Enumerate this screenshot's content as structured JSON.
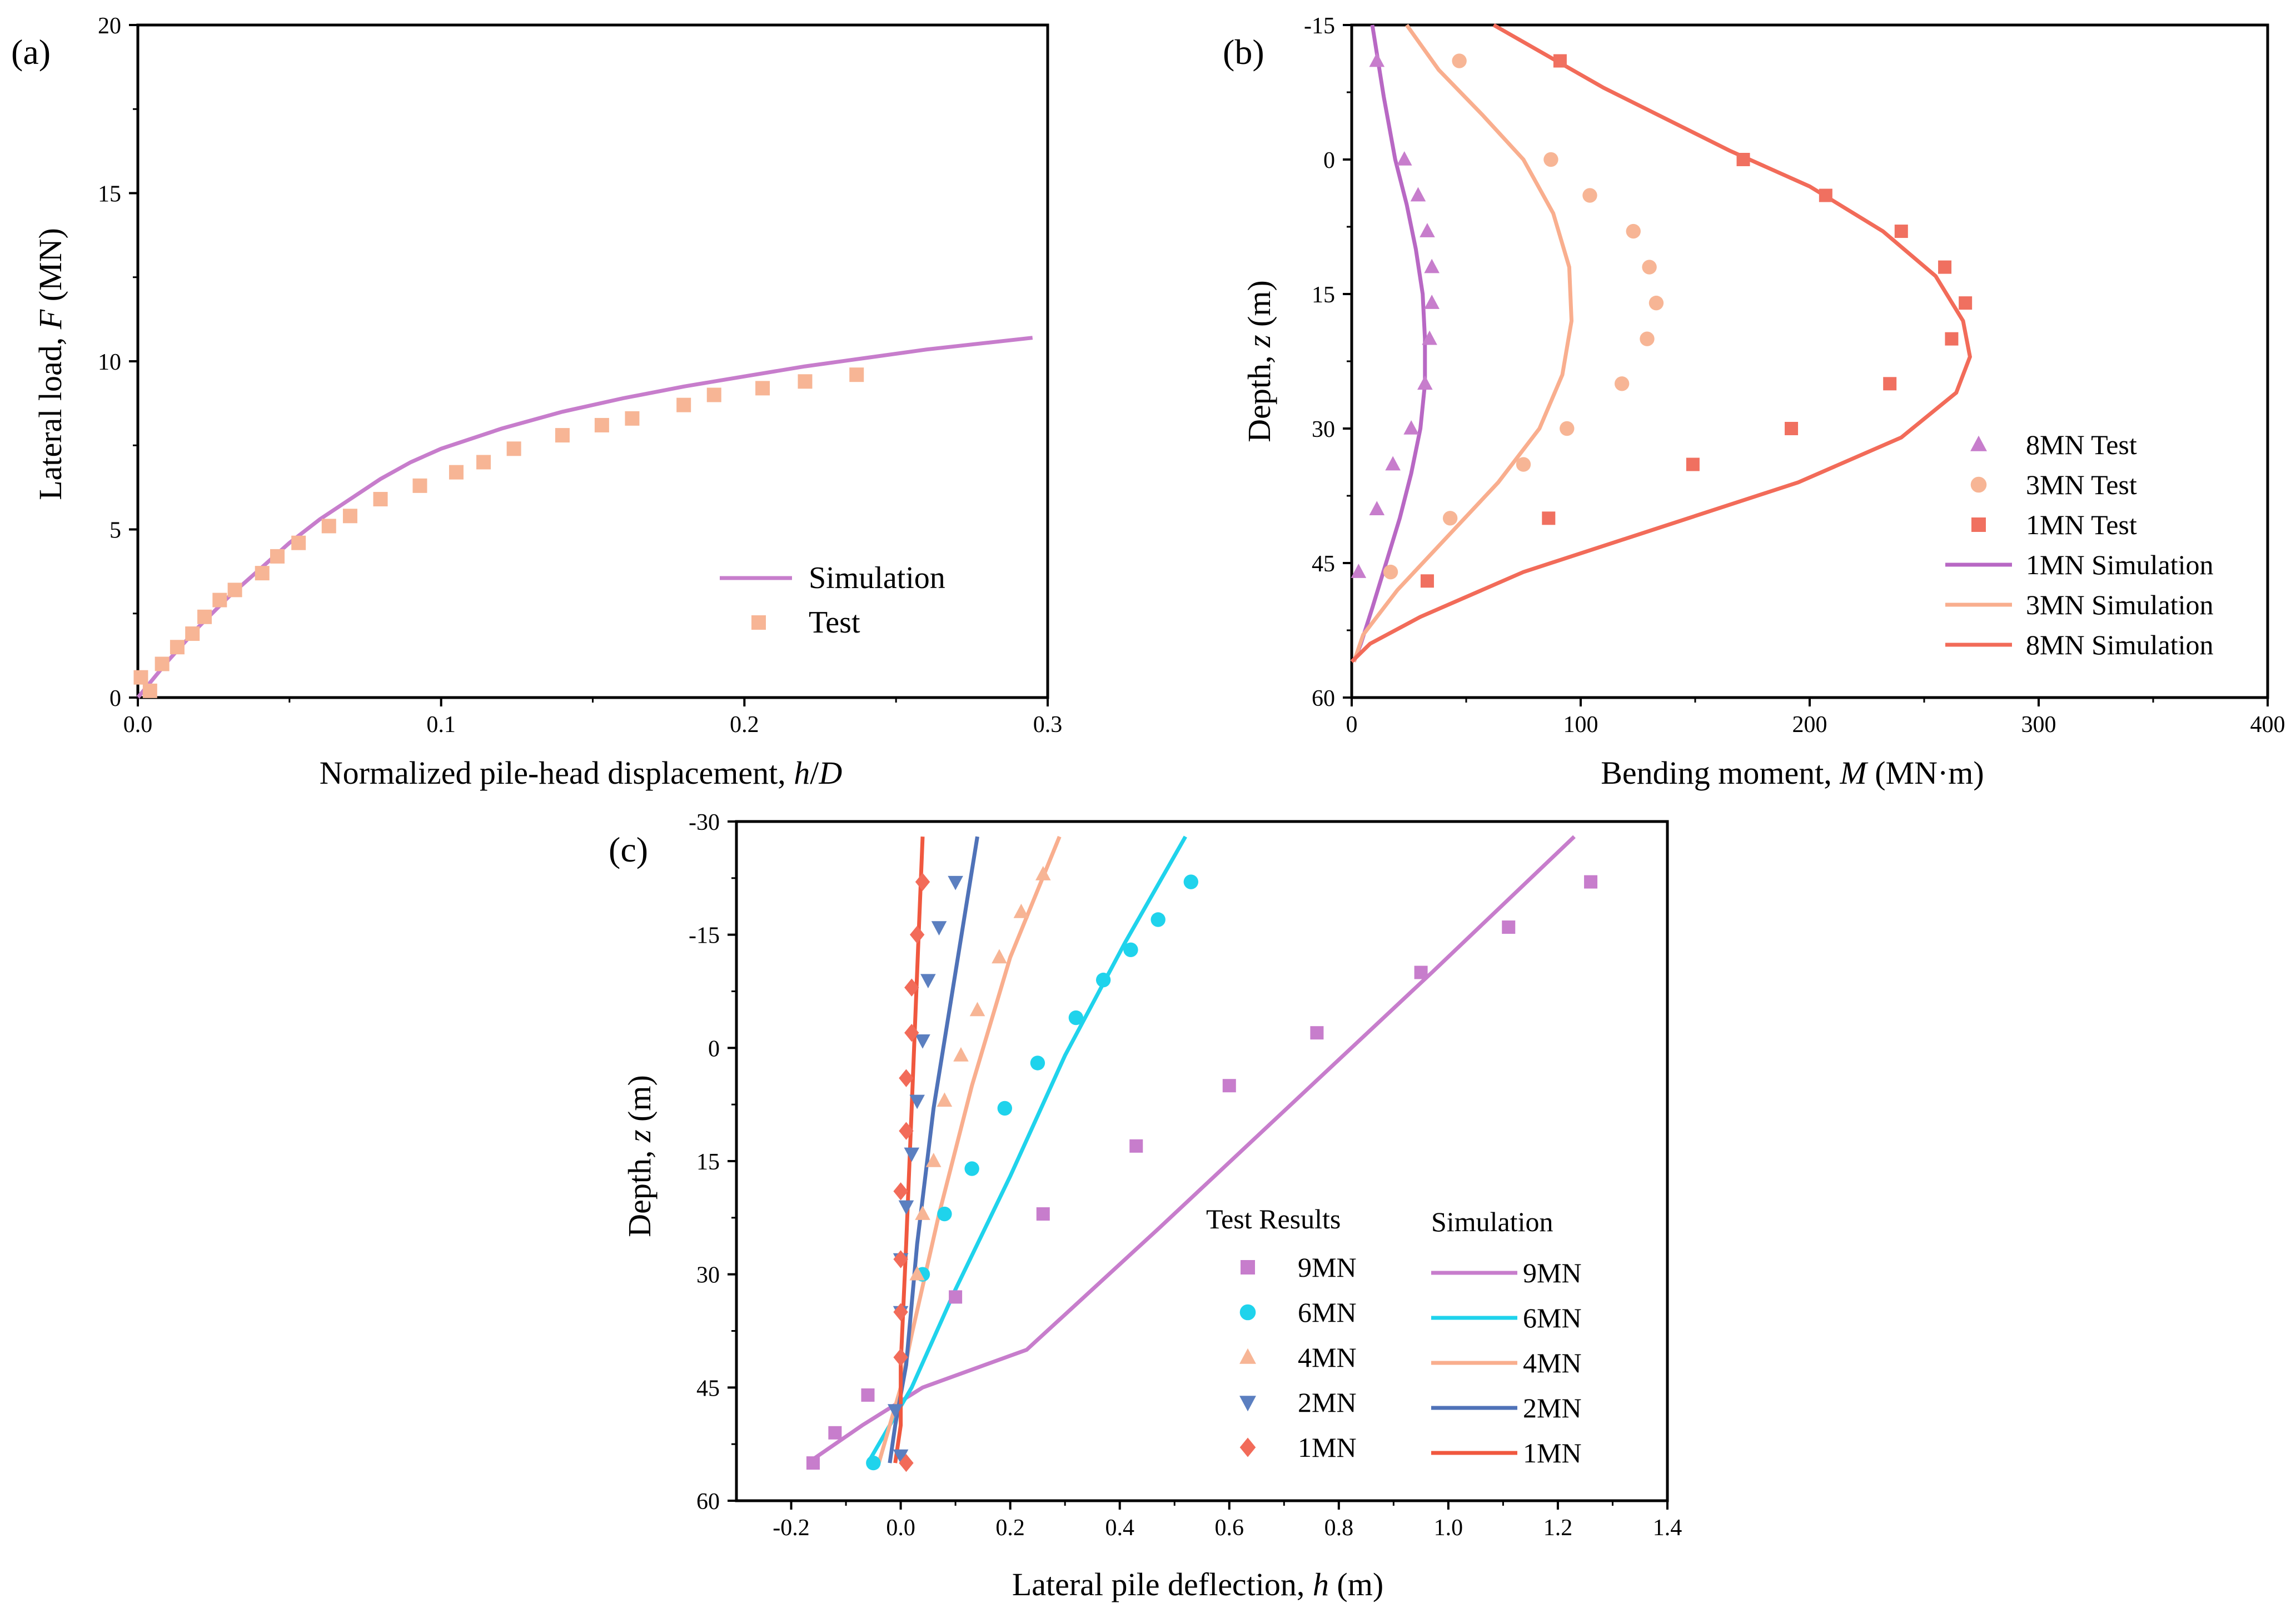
{
  "chart_data": [
    {
      "panel": "(a)",
      "type": "line+scatter",
      "xlabel": "Normalized pile-head displacement, h/D",
      "ylabel": "Lateral load, F (MN)",
      "xlim": [
        0,
        0.3
      ],
      "ylim": [
        0,
        20
      ],
      "xticks": [
        "0.0",
        "0.1",
        "0.2",
        "0.3"
      ],
      "yticks": [
        "0",
        "5",
        "10",
        "15",
        "20"
      ],
      "series": [
        {
          "name": "Simulation",
          "kind": "line",
          "color": "#c77dcc",
          "x": [
            0,
            0.01,
            0.02,
            0.03,
            0.04,
            0.05,
            0.06,
            0.07,
            0.08,
            0.09,
            0.1,
            0.12,
            0.14,
            0.16,
            0.18,
            0.2,
            0.22,
            0.24,
            0.26,
            0.28,
            0.295
          ],
          "y": [
            0,
            1.1,
            2.1,
            3.0,
            3.8,
            4.6,
            5.3,
            5.9,
            6.5,
            7.0,
            7.4,
            8.0,
            8.5,
            8.9,
            9.25,
            9.55,
            9.85,
            10.1,
            10.35,
            10.55,
            10.7
          ]
        },
        {
          "name": "Test",
          "kind": "square",
          "color": "#f7b595",
          "x": [
            0.001,
            0.004,
            0.008,
            0.013,
            0.018,
            0.022,
            0.027,
            0.032,
            0.041,
            0.046,
            0.053,
            0.063,
            0.07,
            0.08,
            0.093,
            0.105,
            0.114,
            0.124,
            0.14,
            0.153,
            0.163,
            0.18,
            0.19,
            0.206,
            0.22,
            0.237
          ],
          "y": [
            0.6,
            0.2,
            1.0,
            1.5,
            1.9,
            2.4,
            2.9,
            3.2,
            3.7,
            4.2,
            4.6,
            5.1,
            5.4,
            5.9,
            6.3,
            6.7,
            7.0,
            7.4,
            7.8,
            8.1,
            8.3,
            8.7,
            9.0,
            9.2,
            9.4,
            9.6
          ]
        }
      ],
      "legend": {
        "position": "bottom-right",
        "entries": [
          "Simulation",
          "Test"
        ]
      }
    },
    {
      "panel": "(b)",
      "type": "line+scatter",
      "xlabel": "Bending moment, M (MN·m)",
      "ylabel": "Depth, z (m)",
      "xlim": [
        0,
        400
      ],
      "ylim": [
        -15,
        60
      ],
      "y_inverted": true,
      "xticks": [
        "0",
        "100",
        "200",
        "300",
        "400"
      ],
      "yticks": [
        "-15",
        "0",
        "15",
        "30",
        "45",
        "60"
      ],
      "series": [
        {
          "name": "8MN Test",
          "kind": "triangle",
          "color": "#c77dcc",
          "x": [
            11,
            23,
            29,
            33,
            35,
            35,
            34,
            32,
            26,
            18,
            11,
            3
          ],
          "y": [
            -11,
            0,
            4,
            8,
            12,
            16,
            20,
            25,
            30,
            34,
            39,
            46
          ]
        },
        {
          "name": "3MN Test",
          "kind": "circle",
          "color": "#f7b595",
          "x": [
            47,
            87,
            104,
            123,
            130,
            133,
            129,
            118,
            94,
            75,
            43,
            17
          ],
          "y": [
            -11,
            0,
            4,
            8,
            12,
            16,
            20,
            25,
            30,
            34,
            40,
            46
          ]
        },
        {
          "name": "1MN Test",
          "kind": "square",
          "color": "#f07060",
          "x": [
            91,
            171,
            207,
            240,
            259,
            268,
            262,
            235,
            192,
            149,
            86,
            33
          ],
          "y": [
            -11,
            0,
            4,
            8,
            12,
            16,
            20,
            25,
            30,
            34,
            40,
            47
          ]
        },
        {
          "name": "1MN Simulation",
          "kind": "line",
          "color": "#b868c4",
          "x": [
            9,
            14,
            19,
            24,
            28,
            31,
            32,
            32,
            30,
            26,
            21,
            15,
            9,
            4,
            1
          ],
          "y": [
            -15,
            -7,
            0,
            5,
            10,
            15,
            20,
            25,
            30,
            35,
            40,
            45,
            50,
            54,
            56
          ]
        },
        {
          "name": "3MN Simulation",
          "kind": "line",
          "color": "#f9ae8e",
          "x": [
            24,
            38,
            57,
            75,
            88,
            95,
            96,
            92,
            82,
            64,
            42,
            20,
            5,
            1
          ],
          "y": [
            -15,
            -10,
            -5,
            0,
            6,
            12,
            18,
            24,
            30,
            36,
            42,
            48,
            53,
            56
          ]
        },
        {
          "name": "8MN Simulation",
          "kind": "line",
          "color": "#f26b59",
          "x": [
            62,
            110,
            165,
            200,
            232,
            255,
            267,
            270,
            264,
            240,
            195,
            135,
            75,
            30,
            8,
            0
          ],
          "y": [
            -15,
            -8,
            -1,
            3,
            8,
            13,
            18,
            22,
            26,
            31,
            36,
            41,
            46,
            51,
            54,
            56
          ]
        }
      ],
      "legend": {
        "position": "bottom-right",
        "entries": [
          "8MN Test",
          "3MN Test",
          "1MN Test",
          "1MN Simulation",
          "3MN Simulation",
          "8MN Simulation"
        ]
      }
    },
    {
      "panel": "(c)",
      "type": "line+scatter",
      "xlabel": "Lateral pile deflection, h (m)",
      "ylabel": "Depth, z (m)",
      "xlim": [
        -0.3,
        1.4
      ],
      "ylim": [
        -30,
        60
      ],
      "y_inverted": true,
      "xticks": [
        "-0.2",
        "0.0",
        "0.2",
        "0.4",
        "0.6",
        "0.8",
        "1.0",
        "1.2",
        "1.4"
      ],
      "yticks": [
        "-30",
        "-15",
        "0",
        "15",
        "30",
        "45",
        "60"
      ],
      "legend": {
        "position": "bottom-right",
        "test_title": "Test Results",
        "sim_title": "Simulation",
        "test_entries": [
          "9MN",
          "6MN",
          "4MN",
          "2MN",
          "1MN"
        ],
        "sim_entries": [
          "9MN",
          "6MN",
          "4MN",
          "2MN",
          "1MN"
        ]
      },
      "test_series": [
        {
          "name": "9MN",
          "kind": "square",
          "color": "#c77dcc",
          "x": [
            1.26,
            1.11,
            0.95,
            0.76,
            0.6,
            0.43,
            0.26,
            0.1,
            -0.06,
            -0.12,
            -0.16
          ],
          "y": [
            -22,
            -16,
            -10,
            -2,
            5,
            13,
            22,
            33,
            46,
            51,
            55
          ]
        },
        {
          "name": "6MN",
          "kind": "circle",
          "color": "#1fd3ec",
          "x": [
            0.53,
            0.47,
            0.42,
            0.37,
            0.32,
            0.25,
            0.19,
            0.13,
            0.08,
            0.04,
            -0.05
          ],
          "y": [
            -22,
            -17,
            -13,
            -9,
            -4,
            2,
            8,
            16,
            22,
            30,
            55
          ]
        },
        {
          "name": "4MN",
          "kind": "triangle",
          "color": "#f7b595",
          "x": [
            0.26,
            0.22,
            0.18,
            0.14,
            0.11,
            0.08,
            0.06,
            0.04,
            0.03
          ],
          "y": [
            -23,
            -18,
            -12,
            -5,
            1,
            7,
            15,
            22,
            30
          ]
        },
        {
          "name": "2MN",
          "kind": "triangle-down",
          "color": "#5b7fc0",
          "x": [
            0.1,
            0.07,
            0.05,
            0.04,
            0.03,
            0.02,
            0.01,
            0.0,
            0.0,
            -0.01,
            0.0
          ],
          "y": [
            -22,
            -16,
            -9,
            -1,
            7,
            14,
            21,
            28,
            35,
            48,
            54
          ]
        },
        {
          "name": "1MN",
          "kind": "diamond",
          "color": "#f26b59",
          "x": [
            0.04,
            0.03,
            0.02,
            0.02,
            0.01,
            0.01,
            0.0,
            0.0,
            0.0,
            0.0,
            0.01
          ],
          "y": [
            -22,
            -15,
            -8,
            -2,
            4,
            11,
            19,
            28,
            35,
            41,
            55
          ]
        }
      ],
      "sim_series": [
        {
          "name": "9MN",
          "color": "#c77dcc",
          "x": [
            1.23,
            0.97,
            0.72,
            0.47,
            0.23,
            0.04,
            -0.07,
            -0.17
          ],
          "y": [
            -28,
            -10,
            7,
            24,
            40,
            45,
            50,
            55
          ]
        },
        {
          "name": "6MN",
          "color": "#1fd3ec",
          "x": [
            0.52,
            0.41,
            0.3,
            0.2,
            0.1,
            0.02,
            -0.02,
            -0.06
          ],
          "y": [
            -28,
            -14,
            1,
            17,
            32,
            45,
            50,
            55
          ]
        },
        {
          "name": "4MN",
          "color": "#f9ae8e",
          "x": [
            0.29,
            0.2,
            0.13,
            0.07,
            0.02,
            0.0,
            -0.02,
            -0.04
          ],
          "y": [
            -28,
            -12,
            5,
            22,
            38,
            45,
            50,
            55
          ]
        },
        {
          "name": "2MN",
          "color": "#4f72b8",
          "x": [
            0.14,
            0.1,
            0.06,
            0.03,
            0.01,
            -0.01,
            -0.02
          ],
          "y": [
            -28,
            -10,
            8,
            26,
            42,
            50,
            55
          ]
        },
        {
          "name": "1MN",
          "color": "#f0583f",
          "x": [
            0.04,
            0.03,
            0.02,
            0.01,
            0.0,
            0.0,
            -0.01
          ],
          "y": [
            -28,
            -10,
            8,
            26,
            42,
            50,
            55
          ]
        }
      ]
    }
  ]
}
